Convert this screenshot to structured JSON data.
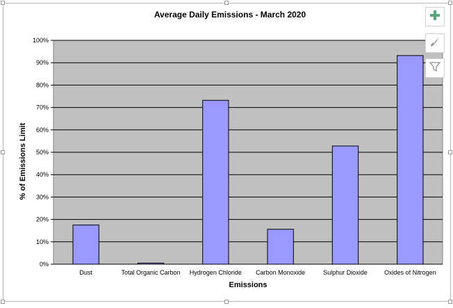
{
  "chart_data": {
    "type": "bar",
    "title": "Average Daily Emissions - March 2020",
    "xlabel": "Emissions",
    "ylabel": "% of Emissions Limit",
    "categories": [
      "Dust",
      "Total Organic Carbon",
      "Hydrogen Chloride",
      "Carbon Monoxide",
      "Sulphur Dioxide",
      "Oxides of Nitrogen"
    ],
    "values": [
      17.5,
      0.5,
      73.2,
      15.6,
      52.8,
      93.2
    ],
    "ylim": [
      0,
      100
    ],
    "y_ticks": [
      "0%",
      "10%",
      "20%",
      "30%",
      "40%",
      "50%",
      "60%",
      "70%",
      "80%",
      "90%",
      "100%"
    ],
    "grid": true,
    "legend": "none",
    "colors": {
      "bar_fill": "#9999ff",
      "bar_stroke": "#000000",
      "plot_background": "#c0c0c0",
      "gridline": "#000000"
    }
  },
  "toolbar": {
    "add_icon": "plus-icon",
    "style_icon": "brush-icon",
    "filter_icon": "filter-icon"
  }
}
